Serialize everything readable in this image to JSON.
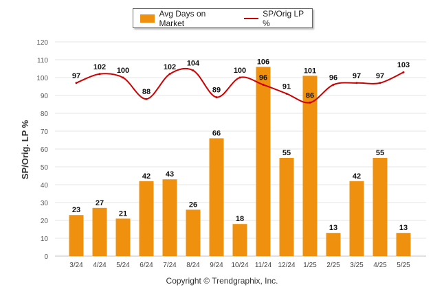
{
  "chart_data": {
    "type": "bar",
    "categories": [
      "3/24",
      "4/24",
      "5/24",
      "6/24",
      "7/24",
      "8/24",
      "9/24",
      "10/24",
      "11/24",
      "12/24",
      "1/25",
      "2/25",
      "3/25",
      "4/25",
      "5/25"
    ],
    "series": [
      {
        "name": "Avg Days on Market",
        "type": "bar",
        "color": "#f0900f",
        "values": [
          23,
          27,
          21,
          42,
          43,
          26,
          66,
          18,
          106,
          55,
          101,
          13,
          42,
          55,
          13
        ]
      },
      {
        "name": "SP/Orig LP %",
        "type": "line",
        "color": "#cc0000",
        "values": [
          97,
          102,
          100,
          88,
          102,
          104,
          89,
          100,
          96,
          91,
          86,
          96,
          97,
          97,
          103
        ]
      }
    ],
    "ylabel": "SP/Orig. LP %",
    "ylim": [
      0,
      120
    ],
    "yticks": [
      0,
      10,
      20,
      30,
      40,
      50,
      60,
      70,
      80,
      90,
      100,
      110,
      120
    ],
    "grid": true,
    "legend": "top-center"
  },
  "legend": {
    "bar_label": "Avg Days on Market",
    "line_label": "SP/Orig LP %"
  },
  "footer": {
    "copyright": "Copyright © Trendgraphix, Inc."
  }
}
